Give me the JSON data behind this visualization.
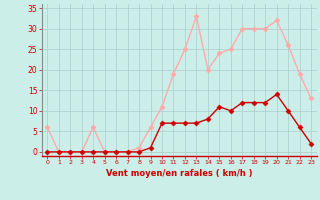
{
  "hours": [
    0,
    1,
    2,
    3,
    4,
    5,
    6,
    7,
    8,
    9,
    10,
    11,
    12,
    13,
    14,
    15,
    16,
    17,
    18,
    19,
    20,
    21,
    22,
    23
  ],
  "wind_avg": [
    0,
    0,
    0,
    0,
    0,
    0,
    0,
    0,
    0,
    1,
    7,
    7,
    7,
    7,
    8,
    11,
    10,
    12,
    12,
    12,
    14,
    10,
    6,
    2
  ],
  "wind_gust": [
    6,
    0,
    0,
    0,
    6,
    0,
    0,
    0,
    1,
    6,
    11,
    19,
    25,
    33,
    20,
    24,
    25,
    30,
    30,
    30,
    32,
    26,
    19,
    13
  ],
  "color_avg": "#cc0000",
  "color_gust": "#ffaaaa",
  "bg_color": "#cceee8",
  "grid_color": "#aacccc",
  "xlabel": "Vent moyen/en rafales ( km/h )",
  "xlabel_color": "#cc0000",
  "yticks": [
    0,
    5,
    10,
    15,
    20,
    25,
    30,
    35
  ],
  "ylim": [
    -1,
    36
  ],
  "xlim": [
    -0.5,
    23.5
  ],
  "tick_color": "#cc0000",
  "markersize": 2.5,
  "linewidth": 1.0
}
